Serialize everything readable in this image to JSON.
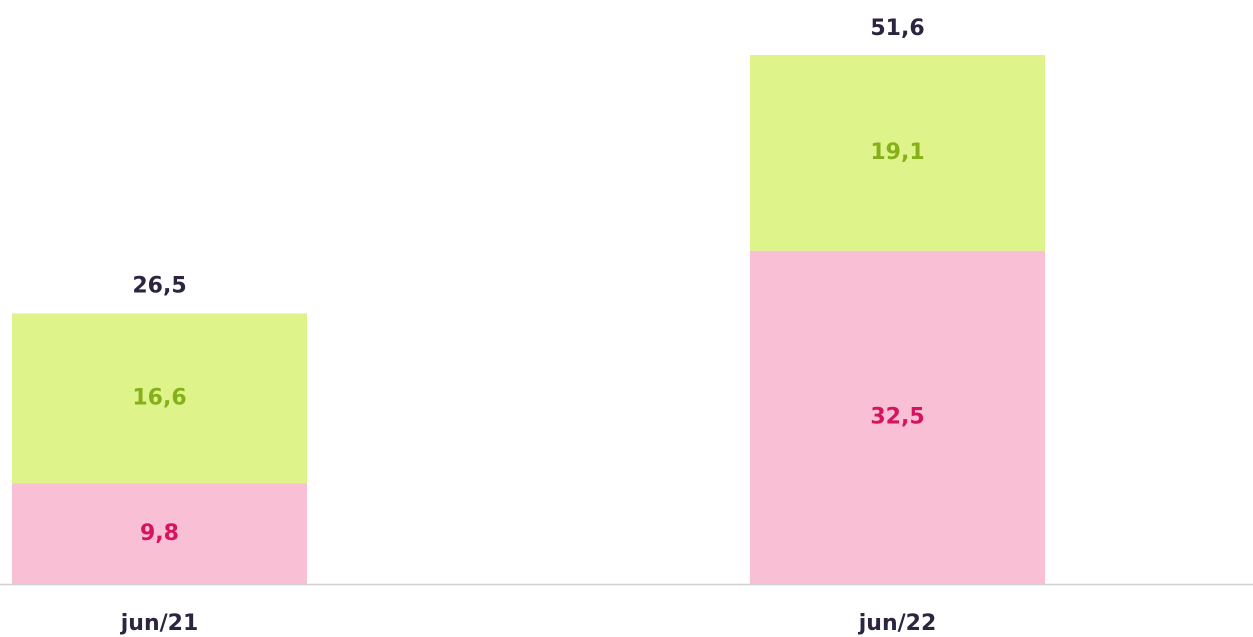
{
  "chart_data": {
    "type": "stacked_bar",
    "categories": [
      "jun/21",
      "jun/22"
    ],
    "series": [
      {
        "color": "#f8bfd5",
        "label_color": "#d6135f",
        "values": [
          9.8,
          32.5
        ],
        "value_labels": [
          "9,8",
          "32,5"
        ]
      },
      {
        "color": "#dff38b",
        "label_color": "#86b01a",
        "values": [
          16.6,
          19.1
        ],
        "value_labels": [
          "16,6",
          "19,1"
        ]
      }
    ],
    "totals": [
      26.5,
      51.6
    ],
    "total_labels": [
      "26,5",
      "51,6"
    ],
    "total_color": "#2d2440"
  }
}
